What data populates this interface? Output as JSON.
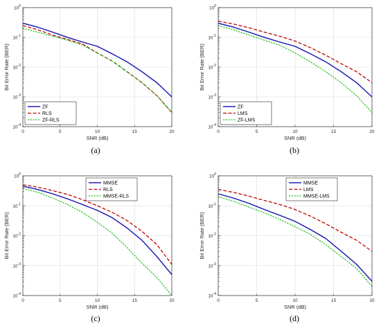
{
  "chart_data": [
    {
      "type": "line",
      "caption": "(a)",
      "xlabel": "SNR (dB)",
      "ylabel": "Bit Error Rate (BER)",
      "xlim": [
        0,
        20
      ],
      "ylim": [
        0.0001,
        1
      ],
      "yscale": "log",
      "xticks": [
        "0",
        "5",
        "10",
        "15",
        "20"
      ],
      "yticks": [
        "10-4",
        "10-3",
        "10-2",
        "10-1",
        "100"
      ],
      "grid": true,
      "legend": "bottom-left",
      "x": [
        0,
        2,
        4,
        6,
        8,
        10,
        12,
        14,
        16,
        18,
        20
      ],
      "series": [
        {
          "name": "ZF",
          "values": [
            0.3,
            0.22,
            0.15,
            0.1,
            0.07,
            0.05,
            0.028,
            0.015,
            0.007,
            0.003,
            0.001
          ]
        },
        {
          "name": "RLS",
          "values": [
            0.25,
            0.18,
            0.12,
            0.085,
            0.06,
            0.03,
            0.016,
            0.007,
            0.003,
            0.0011,
            0.0003
          ]
        },
        {
          "name": "ZF-RLS",
          "values": [
            0.2,
            0.15,
            0.11,
            0.08,
            0.055,
            0.03,
            0.016,
            0.007,
            0.003,
            0.0011,
            0.0003
          ]
        }
      ]
    },
    {
      "type": "line",
      "caption": "(b)",
      "xlabel": "SNR (dB)",
      "ylabel": "Bit Error Rate (BER)",
      "xlim": [
        0,
        20
      ],
      "ylim": [
        0.0001,
        1
      ],
      "yscale": "log",
      "xticks": [
        "0",
        "5",
        "10",
        "15",
        "20"
      ],
      "yticks": [
        "10-4",
        "10-3",
        "10-2",
        "10-1",
        "100"
      ],
      "grid": true,
      "legend": "bottom-left",
      "x": [
        0,
        2,
        4,
        6,
        8,
        10,
        12,
        14,
        16,
        18,
        20
      ],
      "series": [
        {
          "name": "ZF",
          "values": [
            0.3,
            0.22,
            0.15,
            0.1,
            0.07,
            0.05,
            0.028,
            0.015,
            0.007,
            0.003,
            0.001
          ]
        },
        {
          "name": "LMS",
          "values": [
            0.35,
            0.28,
            0.21,
            0.15,
            0.11,
            0.075,
            0.045,
            0.025,
            0.013,
            0.007,
            0.003
          ]
        },
        {
          "name": "ZF-LMS",
          "values": [
            0.25,
            0.18,
            0.12,
            0.08,
            0.055,
            0.03,
            0.015,
            0.007,
            0.003,
            0.0011,
            0.0003
          ]
        }
      ]
    },
    {
      "type": "line",
      "caption": "(c)",
      "xlabel": "SNR (dB)",
      "ylabel": "Bit Error Rate (BER)",
      "xlim": [
        0,
        20
      ],
      "ylim": [
        0.0001,
        1
      ],
      "yscale": "log",
      "xticks": [
        "0",
        "5",
        "10",
        "15",
        "20"
      ],
      "yticks": [
        "10-4",
        "10-3",
        "10-2",
        "10-1",
        "100"
      ],
      "grid": true,
      "legend": "top-right",
      "x": [
        0,
        2,
        4,
        6,
        8,
        10,
        12,
        14,
        16,
        18,
        20
      ],
      "series": [
        {
          "name": "MMSE",
          "values": [
            0.45,
            0.35,
            0.25,
            0.17,
            0.11,
            0.07,
            0.04,
            0.018,
            0.007,
            0.002,
            0.0005
          ]
        },
        {
          "name": "RLS",
          "values": [
            0.5,
            0.42,
            0.32,
            0.24,
            0.16,
            0.1,
            0.06,
            0.032,
            0.014,
            0.005,
            0.0011
          ]
        },
        {
          "name": "MMSE-RLS",
          "values": [
            0.38,
            0.28,
            0.18,
            0.11,
            0.06,
            0.028,
            0.012,
            0.004,
            0.0012,
            0.0004,
            0.0001
          ]
        }
      ]
    },
    {
      "type": "line",
      "caption": "(d)",
      "xlabel": "SNR (dB)",
      "ylabel": "Bit Error Rate (BER)",
      "xlim": [
        0,
        20
      ],
      "ylim": [
        0.0001,
        1
      ],
      "yscale": "log",
      "xticks": [
        "0",
        "5",
        "10",
        "15",
        "20"
      ],
      "yticks": [
        "10-4",
        "10-3",
        "10-2",
        "10-1",
        "100"
      ],
      "grid": true,
      "legend": "top-right",
      "x": [
        0,
        2,
        4,
        6,
        8,
        10,
        12,
        14,
        16,
        18,
        20
      ],
      "series": [
        {
          "name": "MMSE",
          "values": [
            0.25,
            0.18,
            0.12,
            0.075,
            0.048,
            0.03,
            0.016,
            0.008,
            0.003,
            0.0011,
            0.0003
          ]
        },
        {
          "name": "LMS",
          "values": [
            0.35,
            0.28,
            0.21,
            0.15,
            0.11,
            0.075,
            0.045,
            0.025,
            0.013,
            0.007,
            0.003
          ]
        },
        {
          "name": "MMSE-LMS",
          "values": [
            0.2,
            0.14,
            0.09,
            0.058,
            0.035,
            0.02,
            0.011,
            0.005,
            0.002,
            0.0008,
            0.0002
          ]
        }
      ]
    }
  ],
  "styles": {
    "series_colors": [
      "#1f1fb4",
      "#c00000",
      "#20c020"
    ],
    "grid_color": "#d9d9d9"
  }
}
